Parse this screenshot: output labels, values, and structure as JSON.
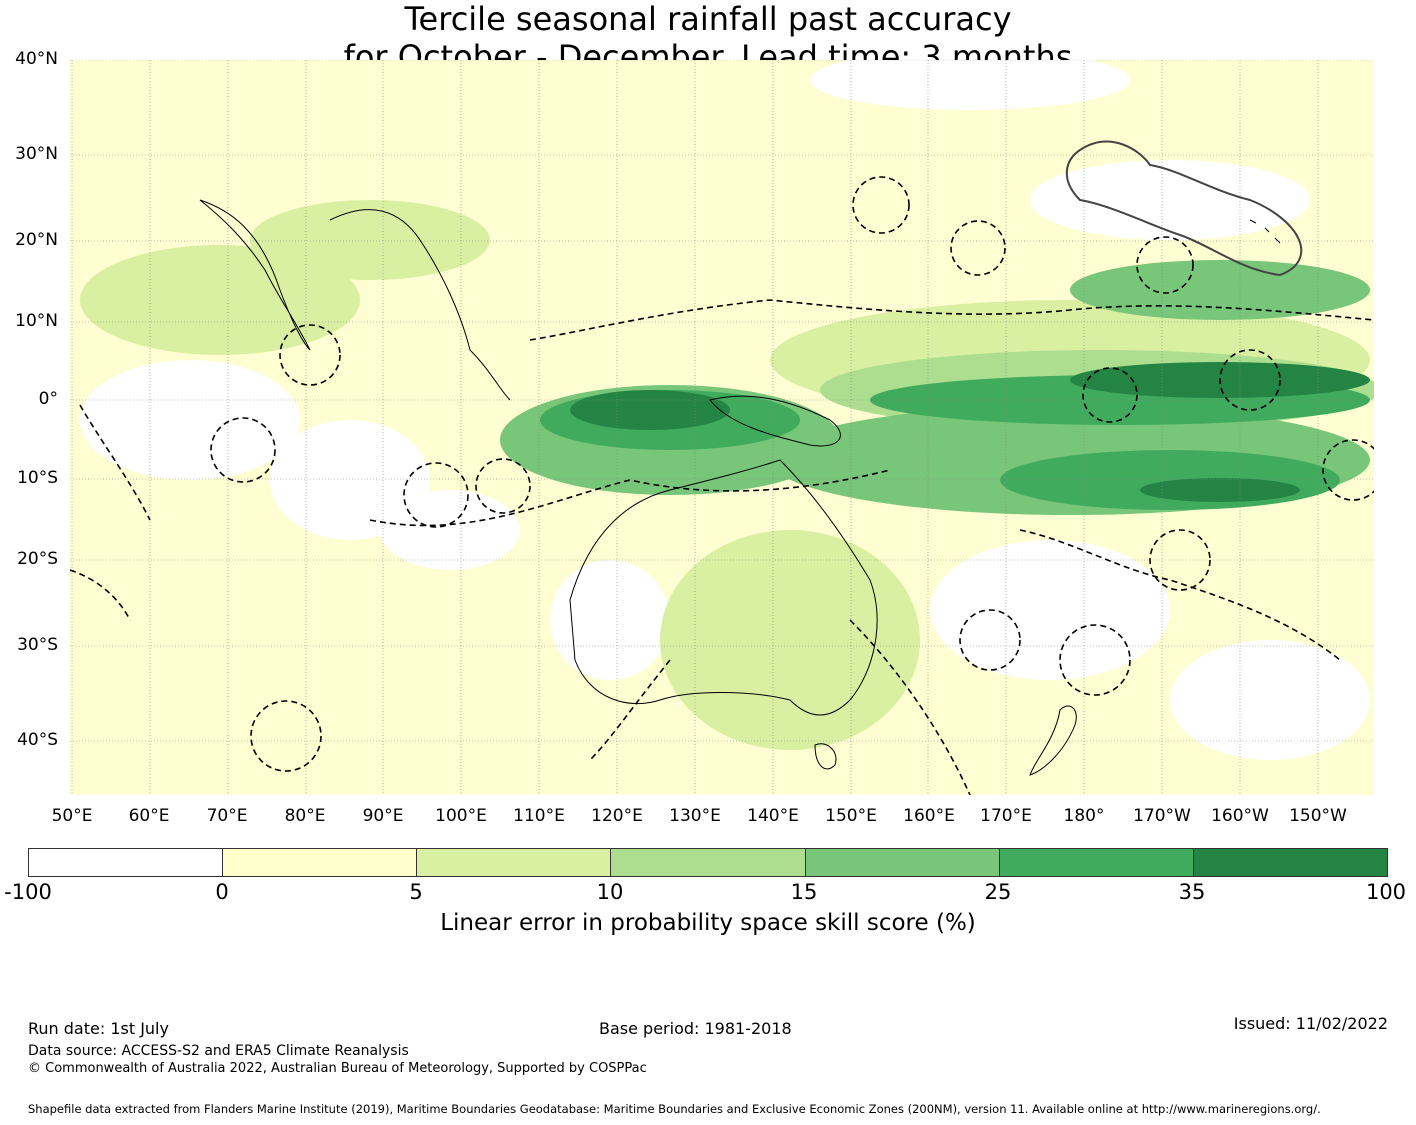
{
  "title_line1": "Tercile seasonal rainfall past accuracy",
  "title_line2": "for October - December. Lead time: 3 months",
  "lat_labels": [
    "40°N",
    "30°N",
    "20°N",
    "10°N",
    "0°",
    "10°S",
    "20°S",
    "30°S",
    "40°S"
  ],
  "lon_labels": [
    "50°E",
    "60°E",
    "70°E",
    "80°E",
    "90°E",
    "100°E",
    "110°E",
    "120°E",
    "130°E",
    "140°E",
    "150°E",
    "160°E",
    "170°E",
    "180°",
    "170°W",
    "160°W",
    "150°W"
  ],
  "colorbar": {
    "ticks": [
      "-100",
      "0",
      "5",
      "10",
      "15",
      "25",
      "35",
      "100"
    ],
    "colors": [
      "#ffffff",
      "#ffffcc",
      "#d9f0a3",
      "#addd8e",
      "#78c679",
      "#41ab5d",
      "#238443"
    ],
    "label": "Linear error in probability space skill score (%)"
  },
  "footer": {
    "run_date": "Run date: 1st July",
    "base_period": "Base period: 1981-2018",
    "issued": "Issued: 11/02/2022",
    "data_source": "Data source: ACCESS-S2 and ERA5 Climate Reanalysis",
    "copyright": "© Commonwealth of Australia 2022, Australian Bureau of Meteorology, Supported by COSPPac",
    "shapefile": "Shapefile data extracted from Flanders Marine Institute (2019), Maritime Boundaries Geodatabase: Maritime Boundaries and Exclusive Economic Zones (200NM), version 11. Available online at http://www.marineregions.org/."
  }
}
